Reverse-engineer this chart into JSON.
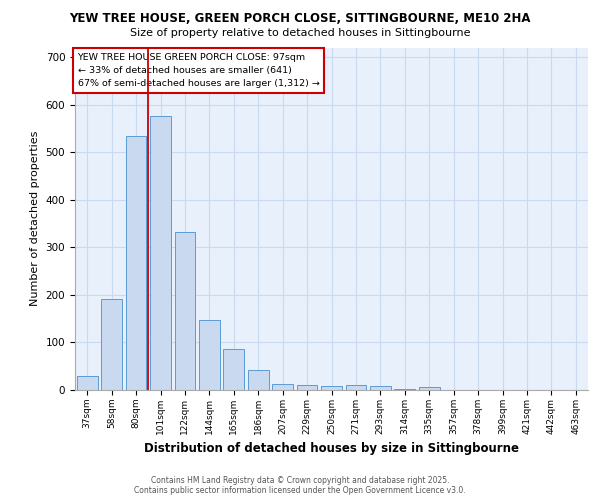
{
  "title_line1": "YEW TREE HOUSE, GREEN PORCH CLOSE, SITTINGBOURNE, ME10 2HA",
  "title_line2": "Size of property relative to detached houses in Sittingbourne",
  "xlabel": "Distribution of detached houses by size in Sittingbourne",
  "ylabel": "Number of detached properties",
  "bin_labels": [
    "37sqm",
    "58sqm",
    "80sqm",
    "101sqm",
    "122sqm",
    "144sqm",
    "165sqm",
    "186sqm",
    "207sqm",
    "229sqm",
    "250sqm",
    "271sqm",
    "293sqm",
    "314sqm",
    "335sqm",
    "357sqm",
    "378sqm",
    "399sqm",
    "421sqm",
    "442sqm",
    "463sqm"
  ],
  "bar_heights": [
    30,
    192,
    535,
    575,
    333,
    147,
    87,
    42,
    13,
    10,
    8,
    10,
    8,
    2,
    7,
    0,
    0,
    0,
    0,
    0,
    0
  ],
  "bar_color": "#c8d9f0",
  "bar_edge_color": "#5b9bd5",
  "grid_color": "#c8d9f0",
  "background_color": "#e8f0fb",
  "red_line_bin_index": 3,
  "annotation_text": "YEW TREE HOUSE GREEN PORCH CLOSE: 97sqm\n← 33% of detached houses are smaller (641)\n67% of semi-detached houses are larger (1,312) →",
  "annotation_box_color": "#ffffff",
  "annotation_box_edge": "#cc0000",
  "footer_line1": "Contains HM Land Registry data © Crown copyright and database right 2025.",
  "footer_line2": "Contains public sector information licensed under the Open Government Licence v3.0.",
  "ylim": [
    0,
    720
  ],
  "yticks": [
    0,
    100,
    200,
    300,
    400,
    500,
    600,
    700
  ]
}
